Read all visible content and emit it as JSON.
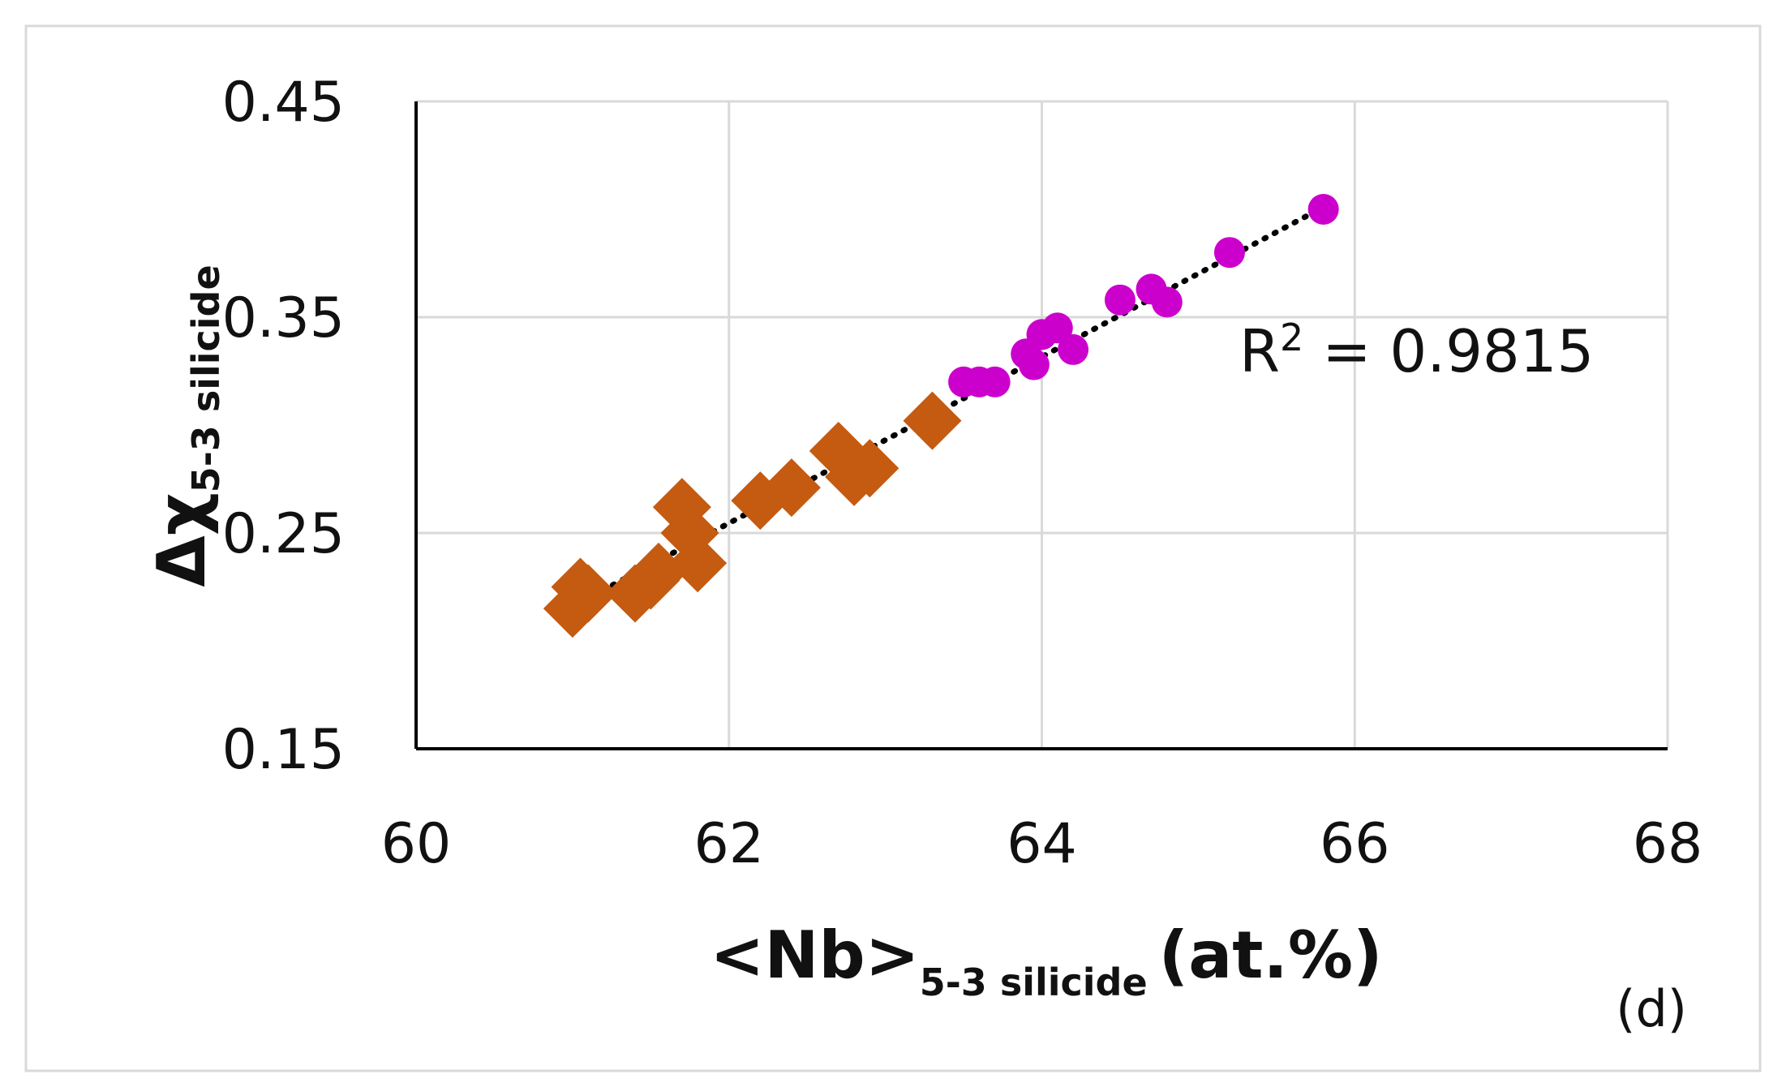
{
  "chart_data": {
    "type": "scatter",
    "title": "",
    "xlabel": {
      "main": "<Nb>",
      "sub": "5-3 silicide",
      "suffix": "(at.%)"
    },
    "ylabel": {
      "main": "Δχ",
      "sub": "5-3 silicide"
    },
    "xlim": [
      60,
      68
    ],
    "ylim": [
      0.15,
      0.45
    ],
    "xticks": [
      60,
      62,
      64,
      66,
      68
    ],
    "xtick_labels": [
      "60",
      "62",
      "64",
      "66",
      "68"
    ],
    "yticks": [
      0.15,
      0.25,
      0.35,
      0.45
    ],
    "ytick_labels": [
      "0.15",
      "0.25",
      "0.35",
      "0.45"
    ],
    "grid": true,
    "legend": "none",
    "panel_label": "(d)",
    "series": [
      {
        "marker": "diamond",
        "color": "#c55a11",
        "points": [
          [
            61.0,
            0.215
          ],
          [
            61.05,
            0.225
          ],
          [
            61.1,
            0.222
          ],
          [
            61.4,
            0.222
          ],
          [
            61.5,
            0.228
          ],
          [
            61.55,
            0.232
          ],
          [
            61.7,
            0.262
          ],
          [
            61.75,
            0.25
          ],
          [
            61.8,
            0.236
          ],
          [
            62.2,
            0.265
          ],
          [
            62.4,
            0.271
          ],
          [
            62.7,
            0.288
          ],
          [
            62.8,
            0.276
          ],
          [
            62.9,
            0.28
          ],
          [
            63.3,
            0.302
          ]
        ]
      },
      {
        "marker": "circle",
        "color": "#cc00cc",
        "points": [
          [
            63.5,
            0.32
          ],
          [
            63.6,
            0.32
          ],
          [
            63.7,
            0.32
          ],
          [
            63.9,
            0.333
          ],
          [
            63.95,
            0.328
          ],
          [
            64.0,
            0.342
          ],
          [
            64.1,
            0.345
          ],
          [
            64.2,
            0.335
          ],
          [
            64.5,
            0.358
          ],
          [
            64.7,
            0.363
          ],
          [
            64.8,
            0.357
          ],
          [
            65.2,
            0.38
          ],
          [
            65.8,
            0.4
          ]
        ]
      }
    ],
    "trendline": {
      "style": "dotted",
      "color": "#000000",
      "x": [
        61.0,
        65.8
      ],
      "y": [
        0.216,
        0.401
      ]
    },
    "annotation": {
      "main": "R",
      "sup": "2",
      "rest": " = 0.9815"
    }
  }
}
